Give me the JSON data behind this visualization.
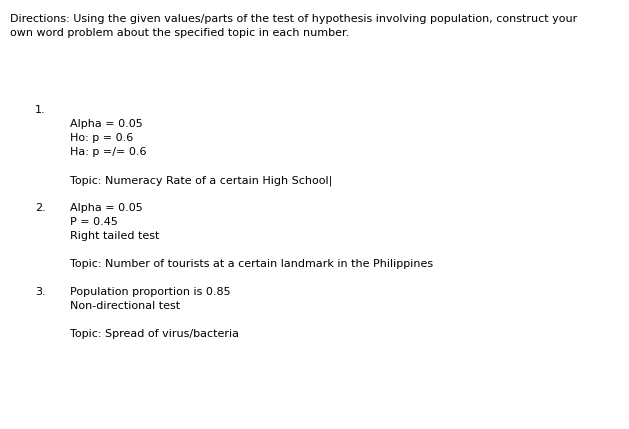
{
  "bg_color": "#ffffff",
  "text_color": "#000000",
  "directions_line1": "Directions: Using the given values/parts of the test of hypothesis involving population, construct your",
  "directions_line2": "own word problem about the specified topic in each number.",
  "fontsize": 8.0,
  "content": [
    {
      "type": "blank",
      "lines": 2
    },
    {
      "type": "number",
      "text": "1.",
      "indent": 35
    },
    {
      "type": "blank",
      "lines": 0
    },
    {
      "type": "text",
      "text": "Alpha = 0.05",
      "indent": 70
    },
    {
      "type": "text",
      "text": "Ho: p = 0.6",
      "indent": 70
    },
    {
      "type": "text",
      "text": "Ha: p =/= 0.6",
      "indent": 70
    },
    {
      "type": "blank",
      "lines": 1
    },
    {
      "type": "text",
      "text": "Topic: Numeracy Rate of a certain High School|",
      "indent": 70
    },
    {
      "type": "blank",
      "lines": 1
    },
    {
      "type": "number_inline",
      "number": "2.",
      "text": "Alpha = 0.05",
      "number_indent": 35,
      "text_indent": 70
    },
    {
      "type": "text",
      "text": "P = 0.45",
      "indent": 70
    },
    {
      "type": "text",
      "text": "Right tailed test",
      "indent": 70
    },
    {
      "type": "blank",
      "lines": 1
    },
    {
      "type": "text",
      "text": "Topic: Number of tourists at a certain landmark in the Philippines",
      "indent": 70
    },
    {
      "type": "blank",
      "lines": 1
    },
    {
      "type": "number_inline",
      "number": "3.",
      "text": "Population proportion is 0.85",
      "number_indent": 35,
      "text_indent": 70
    },
    {
      "type": "text",
      "text": "Non-directional test",
      "indent": 70
    },
    {
      "type": "blank",
      "lines": 1
    },
    {
      "type": "text",
      "text": "Topic: Spread of virus/bacteria",
      "indent": 70
    }
  ]
}
